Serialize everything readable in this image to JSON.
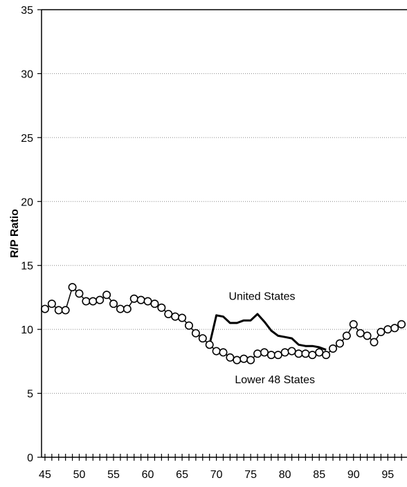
{
  "chart_data": {
    "type": "line",
    "title": "",
    "xlabel": "",
    "ylabel": "R/P Ratio",
    "xlim": [
      44.5,
      97.8
    ],
    "ylim": [
      0,
      35
    ],
    "x_ticks": [
      45,
      50,
      55,
      60,
      65,
      70,
      75,
      80,
      85,
      90,
      95
    ],
    "y_ticks": [
      0,
      5,
      10,
      15,
      20,
      25,
      30,
      35
    ],
    "grid": "horizontal-dotted",
    "annotations": [
      "United States",
      "Lower 48 States"
    ],
    "series": [
      {
        "name": "United States",
        "style": "solid-line",
        "x": [
          69,
          70,
          71,
          72,
          73,
          74,
          75,
          76,
          77,
          78,
          79,
          80,
          81,
          82,
          83,
          84,
          85,
          86
        ],
        "values": [
          8.8,
          11.1,
          11.0,
          10.5,
          10.5,
          10.7,
          10.7,
          11.2,
          10.6,
          9.9,
          9.5,
          9.4,
          9.3,
          8.8,
          8.7,
          8.7,
          8.6,
          8.4
        ]
      },
      {
        "name": "Lower 48 States",
        "style": "line-with-open-circles",
        "x": [
          45,
          46,
          47,
          48,
          49,
          50,
          51,
          52,
          53,
          54,
          55,
          56,
          57,
          58,
          59,
          60,
          61,
          62,
          63,
          64,
          65,
          66,
          67,
          68,
          69,
          70,
          71,
          72,
          73,
          74,
          75,
          76,
          77,
          78,
          79,
          80,
          81,
          82,
          83,
          84,
          85,
          86,
          87,
          88,
          89,
          90,
          91,
          92,
          93,
          94,
          95,
          96,
          97
        ],
        "values": [
          11.6,
          12.0,
          11.5,
          11.5,
          13.3,
          12.8,
          12.2,
          12.2,
          12.3,
          12.7,
          12.0,
          11.6,
          11.6,
          12.4,
          12.3,
          12.2,
          12.0,
          11.7,
          11.2,
          11.0,
          10.9,
          10.3,
          9.7,
          9.3,
          8.8,
          8.3,
          8.2,
          7.8,
          7.6,
          7.7,
          7.6,
          8.1,
          8.2,
          8.0,
          8.0,
          8.2,
          8.3,
          8.1,
          8.1,
          8.0,
          8.2,
          8.0,
          8.5,
          8.9,
          9.5,
          10.4,
          9.7,
          9.5,
          9.0,
          9.8,
          10.0,
          10.1,
          10.4
        ]
      }
    ]
  }
}
